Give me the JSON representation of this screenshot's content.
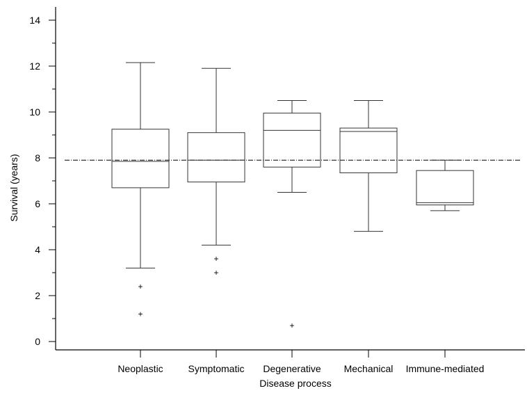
{
  "chart_data": {
    "type": "box",
    "xlabel": "Disease process",
    "ylabel": "Survival (years)",
    "ylim": [
      0,
      14
    ],
    "y_major_ticks": [
      0,
      2,
      4,
      6,
      8,
      10,
      12,
      14
    ],
    "y_minor_ticks": [
      1,
      3,
      5,
      7,
      9,
      11,
      13
    ],
    "grid": false,
    "reference_line": {
      "y": 7.9,
      "style": "dash-dot"
    },
    "categories": [
      "Neoplastic",
      "Symptomatic",
      "Degenerative",
      "Mechanical",
      "Immune-mediated"
    ],
    "boxes": [
      {
        "category": "Neoplastic",
        "whisker_low": 3.2,
        "q1": 6.7,
        "median": 7.85,
        "q3": 9.25,
        "whisker_high": 12.15,
        "outliers": [
          2.4,
          1.2
        ]
      },
      {
        "category": "Symptomatic",
        "whisker_low": 4.2,
        "q1": 6.95,
        "median": 7.9,
        "q3": 9.1,
        "whisker_high": 11.9,
        "outliers": [
          3.6,
          3.0
        ]
      },
      {
        "category": "Degenerative",
        "whisker_low": 6.5,
        "q1": 7.6,
        "median": 9.2,
        "q3": 9.95,
        "whisker_high": 10.5,
        "outliers": [
          0.7
        ]
      },
      {
        "category": "Mechanical",
        "whisker_low": 4.8,
        "q1": 7.35,
        "median": 9.15,
        "q3": 9.3,
        "whisker_high": 10.5,
        "outliers": []
      },
      {
        "category": "Immune-mediated",
        "whisker_low": 5.7,
        "q1": 5.95,
        "median": 6.05,
        "q3": 7.45,
        "whisker_high": 7.9,
        "outliers": []
      }
    ],
    "colors": {
      "line": "#000000",
      "box_edge": "#333333",
      "background": "#ffffff"
    }
  }
}
